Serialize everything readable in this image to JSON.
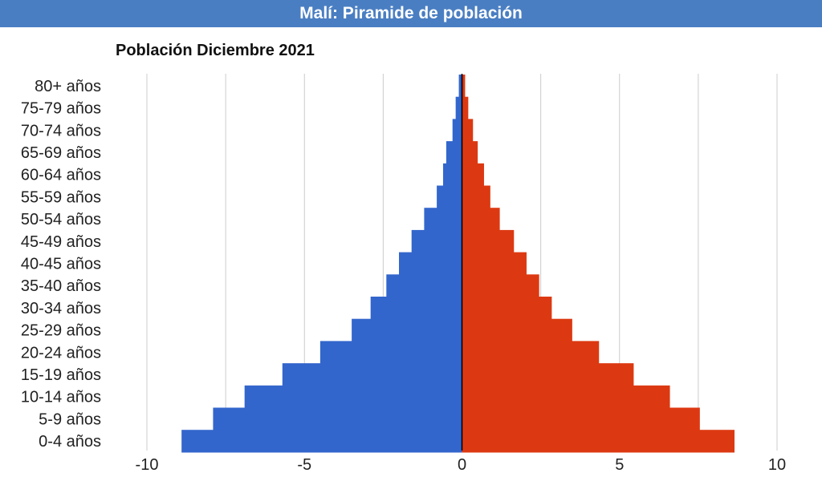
{
  "header": {
    "title": "Malí: Piramide de población"
  },
  "colors": {
    "header_bg": "#4a7ec2",
    "male": "#3366cc",
    "female": "#dc3912",
    "grid": "#cccccc",
    "axis": "#000000"
  },
  "chart_data": {
    "type": "bar",
    "orientation": "horizontal",
    "title": "Población Diciembre 2021",
    "categories": [
      "80+ años",
      "75-79 años",
      "70-74 años",
      "65-69 años",
      "60-64 años",
      "55-59 años",
      "50-54 años",
      "45-49 años",
      "40-45 años",
      "35-40 años",
      "30-34 años",
      "25-29 años",
      "20-24 años",
      "15-19 años",
      "10-14 años",
      "5-9 años",
      "0-4 años"
    ],
    "series": [
      {
        "values": [
          -0.1,
          -0.2,
          -0.3,
          -0.5,
          -0.6,
          -0.8,
          -1.2,
          -1.6,
          -2.0,
          -2.4,
          -2.9,
          -3.5,
          -4.5,
          -5.7,
          -6.9,
          -7.9,
          -8.9
        ]
      },
      {
        "values": [
          0.1,
          0.2,
          0.35,
          0.5,
          0.7,
          0.9,
          1.2,
          1.65,
          2.05,
          2.45,
          2.85,
          3.5,
          4.35,
          5.45,
          6.6,
          7.55,
          8.65
        ]
      }
    ],
    "xlim": [
      -10,
      10
    ],
    "xticks": [
      -10,
      -5,
      0,
      5,
      10
    ],
    "grid": true,
    "legend": "none"
  }
}
